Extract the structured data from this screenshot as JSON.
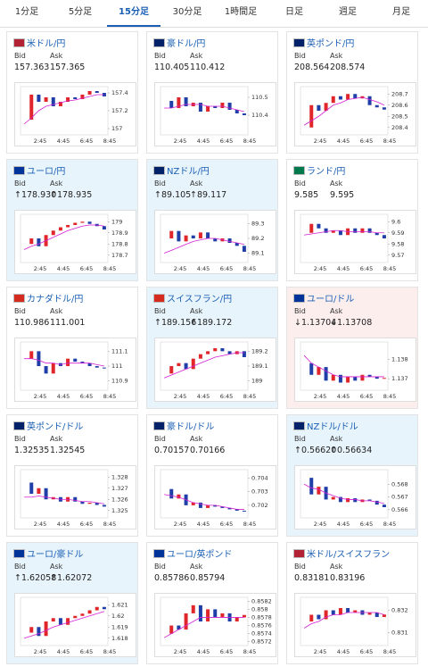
{
  "tabs": [
    {
      "label": "1分足",
      "active": false
    },
    {
      "label": "5分足",
      "active": false
    },
    {
      "label": "15分足",
      "active": true
    },
    {
      "label": "30分足",
      "active": false
    },
    {
      "label": "1時間足",
      "active": false
    },
    {
      "label": "日足",
      "active": false
    },
    {
      "label": "週足",
      "active": false
    },
    {
      "label": "月足",
      "active": false
    }
  ],
  "bid_label": "Bid",
  "ask_label": "Ask",
  "xticks": [
    "2:45",
    "4:45",
    "6:45",
    "8:45"
  ],
  "cards": [
    {
      "name": "米ドル/円",
      "bid": "157.363",
      "ask": "157.365",
      "trend": null,
      "chart": {
        "ylim": [
          156.95,
          157.45
        ],
        "yticks": [
          157.4,
          157.2,
          157
        ],
        "close": [
          157.1,
          157.38,
          157.3,
          157.35,
          157.25,
          157.3,
          157.35,
          157.33,
          157.38,
          157.42,
          157.4,
          157.36
        ],
        "ma": [
          157.05,
          157.12,
          157.2,
          157.25,
          157.27,
          157.29,
          157.31,
          157.32,
          157.34,
          157.36,
          157.38,
          157.38
        ]
      }
    },
    {
      "name": "豪ドル/円",
      "bid": "110.405",
      "ask": "110.412",
      "trend": null,
      "chart": {
        "ylim": [
          110.3,
          110.55
        ],
        "yticks": [
          110.5,
          110.4
        ],
        "close": [
          110.48,
          110.44,
          110.5,
          110.45,
          110.47,
          110.42,
          110.45,
          110.44,
          110.47,
          110.43,
          110.41,
          110.4
        ],
        "ma": [
          110.44,
          110.44,
          110.45,
          110.46,
          110.46,
          110.46,
          110.45,
          110.45,
          110.45,
          110.44,
          110.43,
          110.42
        ]
      }
    },
    {
      "name": "英ポンド/円",
      "bid": "208.564",
      "ask": "208.574",
      "trend": null,
      "chart": {
        "ylim": [
          208.35,
          208.75
        ],
        "yticks": [
          208.7,
          208.6,
          208.5,
          208.4
        ],
        "close": [
          208.4,
          208.6,
          208.55,
          208.62,
          208.68,
          208.65,
          208.7,
          208.66,
          208.68,
          208.6,
          208.58,
          208.56
        ],
        "ma": [
          208.42,
          208.46,
          208.5,
          208.55,
          208.6,
          208.62,
          208.65,
          208.66,
          208.67,
          208.65,
          208.63,
          208.6
        ]
      }
    },
    {
      "name": "ユーロ/円",
      "bid": "↑178.930",
      "ask": "↑178.935",
      "trend": "up",
      "chart": {
        "ylim": [
          178.65,
          179.05
        ],
        "yticks": [
          179,
          178.9,
          178.8,
          178.7
        ],
        "close": [
          178.8,
          178.85,
          178.78,
          178.88,
          178.92,
          178.95,
          178.97,
          178.99,
          179.0,
          178.98,
          178.96,
          178.93
        ],
        "ma": [
          178.75,
          178.78,
          178.8,
          178.83,
          178.86,
          178.89,
          178.92,
          178.94,
          178.96,
          178.97,
          178.97,
          178.96
        ]
      }
    },
    {
      "name": "NZドル/円",
      "bid": "↑89.105",
      "ask": "↑89.117",
      "trend": "up",
      "chart": {
        "ylim": [
          89.05,
          89.35
        ],
        "yticks": [
          89.3,
          89.2,
          89.1
        ],
        "close": [
          89.2,
          89.25,
          89.18,
          89.22,
          89.2,
          89.24,
          89.2,
          89.18,
          89.2,
          89.17,
          89.15,
          89.11
        ],
        "ma": [
          89.1,
          89.12,
          89.14,
          89.16,
          89.18,
          89.19,
          89.2,
          89.2,
          89.19,
          89.18,
          89.17,
          89.16
        ]
      }
    },
    {
      "name": "ランド/円",
      "bid": "9.585",
      "ask": "9.595",
      "trend": null,
      "chart": {
        "ylim": [
          9.565,
          9.605
        ],
        "yticks": [
          9.6,
          9.59,
          9.58,
          9.57
        ],
        "close": [
          9.59,
          9.598,
          9.594,
          9.59,
          9.592,
          9.588,
          9.594,
          9.59,
          9.594,
          9.59,
          9.588,
          9.585
        ],
        "ma": [
          9.588,
          9.589,
          9.59,
          9.591,
          9.592,
          9.592,
          9.591,
          9.591,
          9.591,
          9.591,
          9.59,
          9.59
        ]
      }
    },
    {
      "name": "カナダドル/円",
      "bid": "110.986",
      "ask": "111.001",
      "trend": null,
      "chart": {
        "ylim": [
          110.85,
          111.15
        ],
        "yticks": [
          111.1,
          111,
          110.9
        ],
        "close": [
          111.05,
          111.1,
          111.0,
          110.95,
          111.02,
          111.0,
          111.05,
          111.03,
          111.02,
          111.0,
          110.99,
          110.986
        ],
        "ma": [
          111.05,
          111.05,
          111.04,
          111.02,
          111.02,
          111.01,
          111.02,
          111.02,
          111.02,
          111.02,
          111.01,
          111.0
        ]
      }
    },
    {
      "name": "スイスフラン/円",
      "bid": "↑189.156",
      "ask": "↑189.172",
      "trend": "up",
      "chart": {
        "ylim": [
          188.95,
          189.25
        ],
        "yticks": [
          189.2,
          189.1,
          189
        ],
        "close": [
          189.05,
          189.1,
          189.12,
          189.08,
          189.15,
          189.18,
          189.2,
          189.22,
          189.2,
          189.18,
          189.2,
          189.16
        ],
        "ma": [
          189.02,
          189.04,
          189.06,
          189.08,
          189.1,
          189.12,
          189.14,
          189.16,
          189.17,
          189.18,
          189.19,
          189.19
        ]
      }
    },
    {
      "name": "ユーロ/ドル",
      "bid": "↓1.13704",
      "ask": "↓1.13708",
      "trend": "down",
      "chart": {
        "ylim": [
          1.1365,
          1.1388
        ],
        "yticks": [
          1.138,
          1.137
        ],
        "close": [
          1.1378,
          1.1372,
          1.1376,
          1.1369,
          1.1372,
          1.1368,
          1.1371,
          1.1369,
          1.1372,
          1.1371,
          1.137,
          1.13704
        ],
        "ma": [
          1.1382,
          1.1378,
          1.1376,
          1.1374,
          1.1372,
          1.1371,
          1.1371,
          1.1371,
          1.1371,
          1.1371,
          1.1371,
          1.1371
        ]
      }
    },
    {
      "name": "英ポンド/ドル",
      "bid": "1.32535",
      "ask": "1.32545",
      "trend": null,
      "chart": {
        "ylim": [
          1.3245,
          1.3285
        ],
        "yticks": [
          1.328,
          1.327,
          1.326,
          1.325
        ],
        "close": [
          1.3275,
          1.3265,
          1.327,
          1.326,
          1.3262,
          1.3258,
          1.3262,
          1.3258,
          1.3256,
          1.3257,
          1.3255,
          1.32535
        ],
        "ma": [
          1.3262,
          1.3262,
          1.3263,
          1.3262,
          1.3261,
          1.326,
          1.326,
          1.3259,
          1.3258,
          1.3258,
          1.3257,
          1.3256
        ]
      }
    },
    {
      "name": "豪ドル/ドル",
      "bid": "0.70157",
      "ask": "0.70166",
      "trend": null,
      "chart": {
        "ylim": [
          0.7012,
          0.7045
        ],
        "yticks": [
          0.704,
          0.703,
          0.702
        ],
        "close": [
          0.7032,
          0.7025,
          0.7028,
          0.702,
          0.7022,
          0.7018,
          0.702,
          0.7019,
          0.7018,
          0.7017,
          0.7016,
          0.70157
        ],
        "ma": [
          0.7028,
          0.7027,
          0.7026,
          0.7024,
          0.7022,
          0.7021,
          0.702,
          0.702,
          0.7019,
          0.7018,
          0.7017,
          0.7017
        ]
      }
    },
    {
      "name": "NZドル/ドル",
      "bid": "↑0.56620",
      "ask": "↑0.56634",
      "trend": "up",
      "chart": {
        "ylim": [
          0.5655,
          0.569
        ],
        "yticks": [
          0.568,
          0.567,
          0.566
        ],
        "close": [
          0.5685,
          0.5672,
          0.5678,
          0.5668,
          0.567,
          0.5666,
          0.5669,
          0.5666,
          0.5668,
          0.5667,
          0.5664,
          0.5662
        ],
        "ma": [
          0.568,
          0.5677,
          0.5676,
          0.5673,
          0.5671,
          0.5669,
          0.5668,
          0.5668,
          0.5667,
          0.5667,
          0.5666,
          0.5665
        ]
      }
    },
    {
      "name": "ユーロ/豪ドル",
      "bid": "↑1.62058",
      "ask": "↑1.62072",
      "trend": "up",
      "chart": {
        "ylim": [
          1.6175,
          1.6215
        ],
        "yticks": [
          1.621,
          1.62,
          1.619,
          1.618
        ],
        "close": [
          1.6185,
          1.619,
          1.6182,
          1.6195,
          1.6198,
          1.6192,
          1.6198,
          1.62,
          1.6202,
          1.6205,
          1.6208,
          1.6206
        ],
        "ma": [
          1.618,
          1.6182,
          1.6184,
          1.6187,
          1.619,
          1.6192,
          1.6194,
          1.6196,
          1.6198,
          1.62,
          1.6202,
          1.6204
        ]
      }
    },
    {
      "name": "ユーロ/英ポンド",
      "bid": "0.85786",
      "ask": "0.85794",
      "trend": null,
      "chart": {
        "ylim": [
          0.85715,
          0.85825
        ],
        "yticks": [
          0.8582,
          0.858,
          0.8578,
          0.8576,
          0.8574,
          0.8572
        ],
        "close": [
          0.8574,
          0.8576,
          0.8575,
          0.8579,
          0.8581,
          0.8577,
          0.858,
          0.8578,
          0.8579,
          0.8577,
          0.8578,
          0.85786
        ],
        "ma": [
          0.8573,
          0.8574,
          0.8575,
          0.8576,
          0.8577,
          0.8578,
          0.8578,
          0.8578,
          0.8578,
          0.8578,
          0.8578,
          0.8578
        ]
      }
    },
    {
      "name": "米ドル/スイスフラン",
      "bid": "0.83181",
      "ask": "0.83196",
      "trend": null,
      "chart": {
        "ylim": [
          0.8305,
          0.8325
        ],
        "yticks": [
          0.832,
          0.831
        ],
        "close": [
          0.8315,
          0.8318,
          0.8316,
          0.832,
          0.8318,
          0.8321,
          0.8319,
          0.832,
          0.8318,
          0.8319,
          0.8317,
          0.83181
        ],
        "ma": [
          0.8312,
          0.8314,
          0.8315,
          0.8317,
          0.8318,
          0.8318,
          0.8319,
          0.8319,
          0.8319,
          0.8319,
          0.8319,
          0.8318
        ]
      }
    }
  ]
}
